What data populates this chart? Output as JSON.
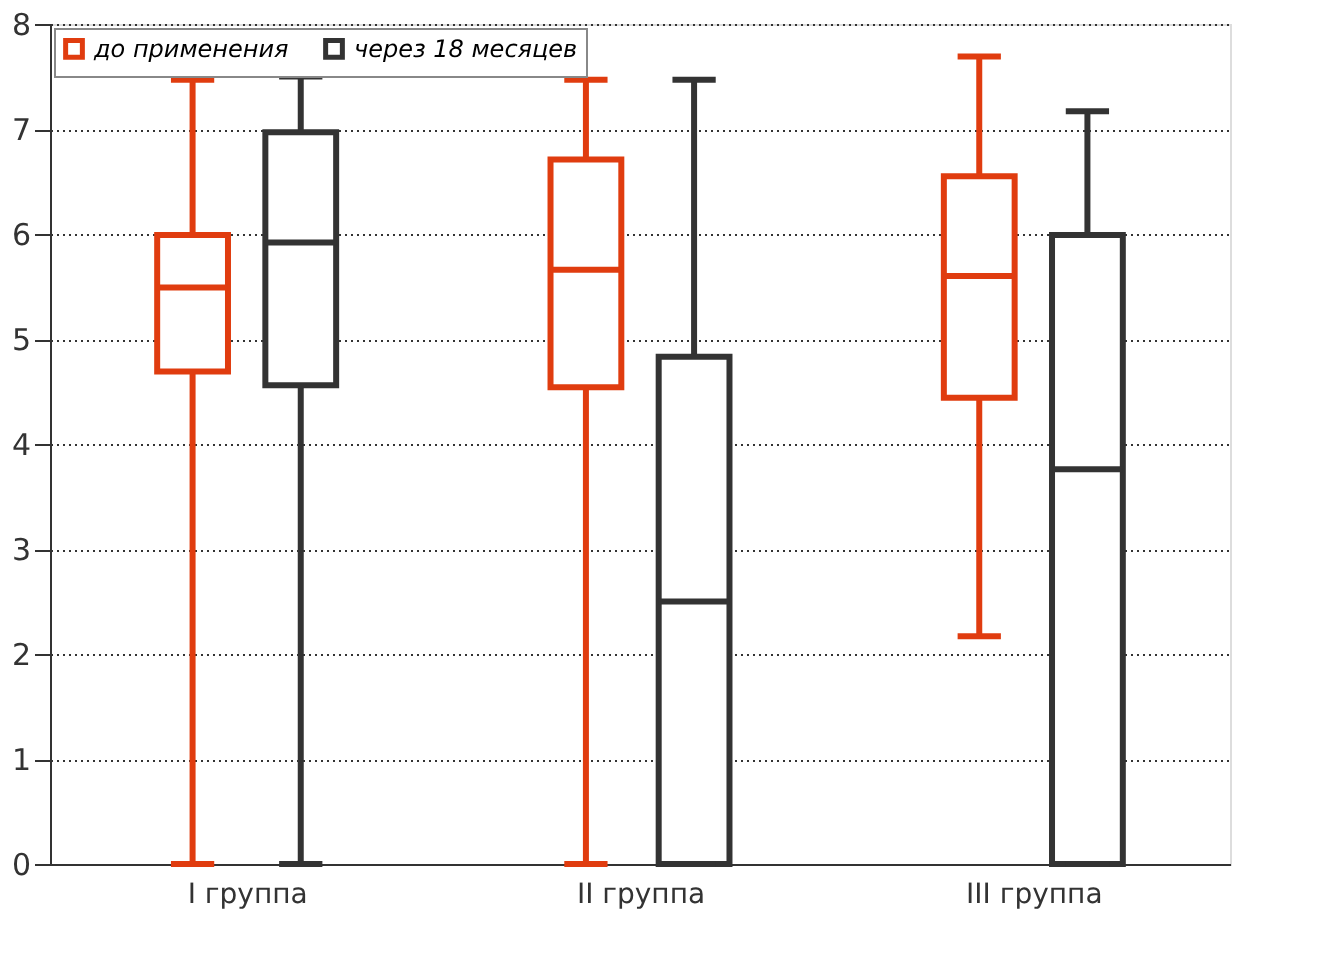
{
  "chart_data": {
    "type": "box",
    "categories": [
      "I группа",
      "II группа",
      "III группа"
    ],
    "series": [
      {
        "name": "до применения",
        "color": "#e03c0f",
        "boxes": [
          {
            "low": 0,
            "q1": 4.69,
            "median": 5.49,
            "q3": 5.99,
            "high": 7.47
          },
          {
            "low": 0,
            "q1": 4.54,
            "median": 5.66,
            "q3": 6.71,
            "high": 7.47
          },
          {
            "low": 2.17,
            "q1": 4.44,
            "median": 5.6,
            "q3": 6.55,
            "high": 7.69
          }
        ]
      },
      {
        "name": "через 18 месяцев",
        "color": "#333333",
        "boxes": [
          {
            "low": 0,
            "q1": 4.56,
            "median": 5.92,
            "q3": 6.97,
            "high": 7.5
          },
          {
            "low": 0,
            "q1": 0,
            "median": 2.5,
            "q3": 4.83,
            "high": 7.47
          },
          {
            "low": 0,
            "q1": 0,
            "median": 3.76,
            "q3": 5.99,
            "high": 7.17
          }
        ]
      }
    ],
    "ylim": [
      0,
      8
    ],
    "yticks": [
      0,
      1,
      2,
      3,
      4,
      5,
      6,
      7,
      8
    ],
    "grid": "y",
    "legend": "top left"
  }
}
